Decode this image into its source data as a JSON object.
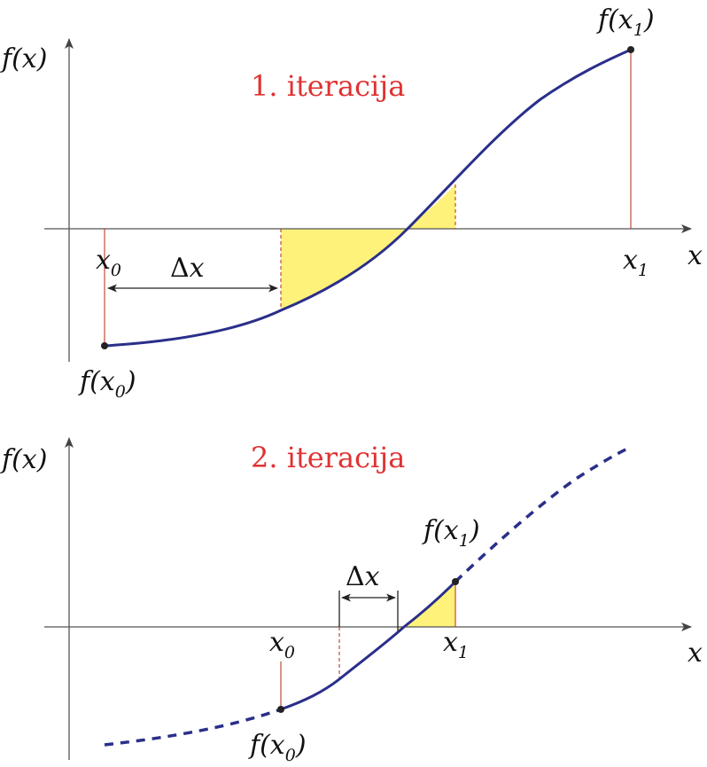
{
  "colors": {
    "curve": "#2a2f8a",
    "title": "#e03232",
    "highlight": "#fff27a",
    "guide": "#c0392b"
  },
  "panels": [
    {
      "title": "1. iteracija",
      "y_axis_label": "f(x)",
      "x_axis_label": "x",
      "x0_label": "x",
      "x0_sub": "0",
      "x1_label": "x",
      "x1_sub": "1",
      "fx0_pre": "f(x",
      "fx0_sub": "0",
      "fx0_post": ")",
      "fx1_pre": "f(x",
      "fx1_sub": "1",
      "fx1_post": ")",
      "delta_symbol": "Δ",
      "delta_var": "x"
    },
    {
      "title": "2. iteracija",
      "y_axis_label": "f(x)",
      "x_axis_label": "x",
      "x0_label": "x",
      "x0_sub": "0",
      "x1_label": "x",
      "x1_sub": "1",
      "fx0_pre": "f(x",
      "fx0_sub": "0",
      "fx0_post": ")",
      "fx1_pre": "f(x",
      "fx1_sub": "1",
      "fx1_post": ")",
      "delta_symbol": "Δ",
      "delta_var": "x"
    }
  ]
}
